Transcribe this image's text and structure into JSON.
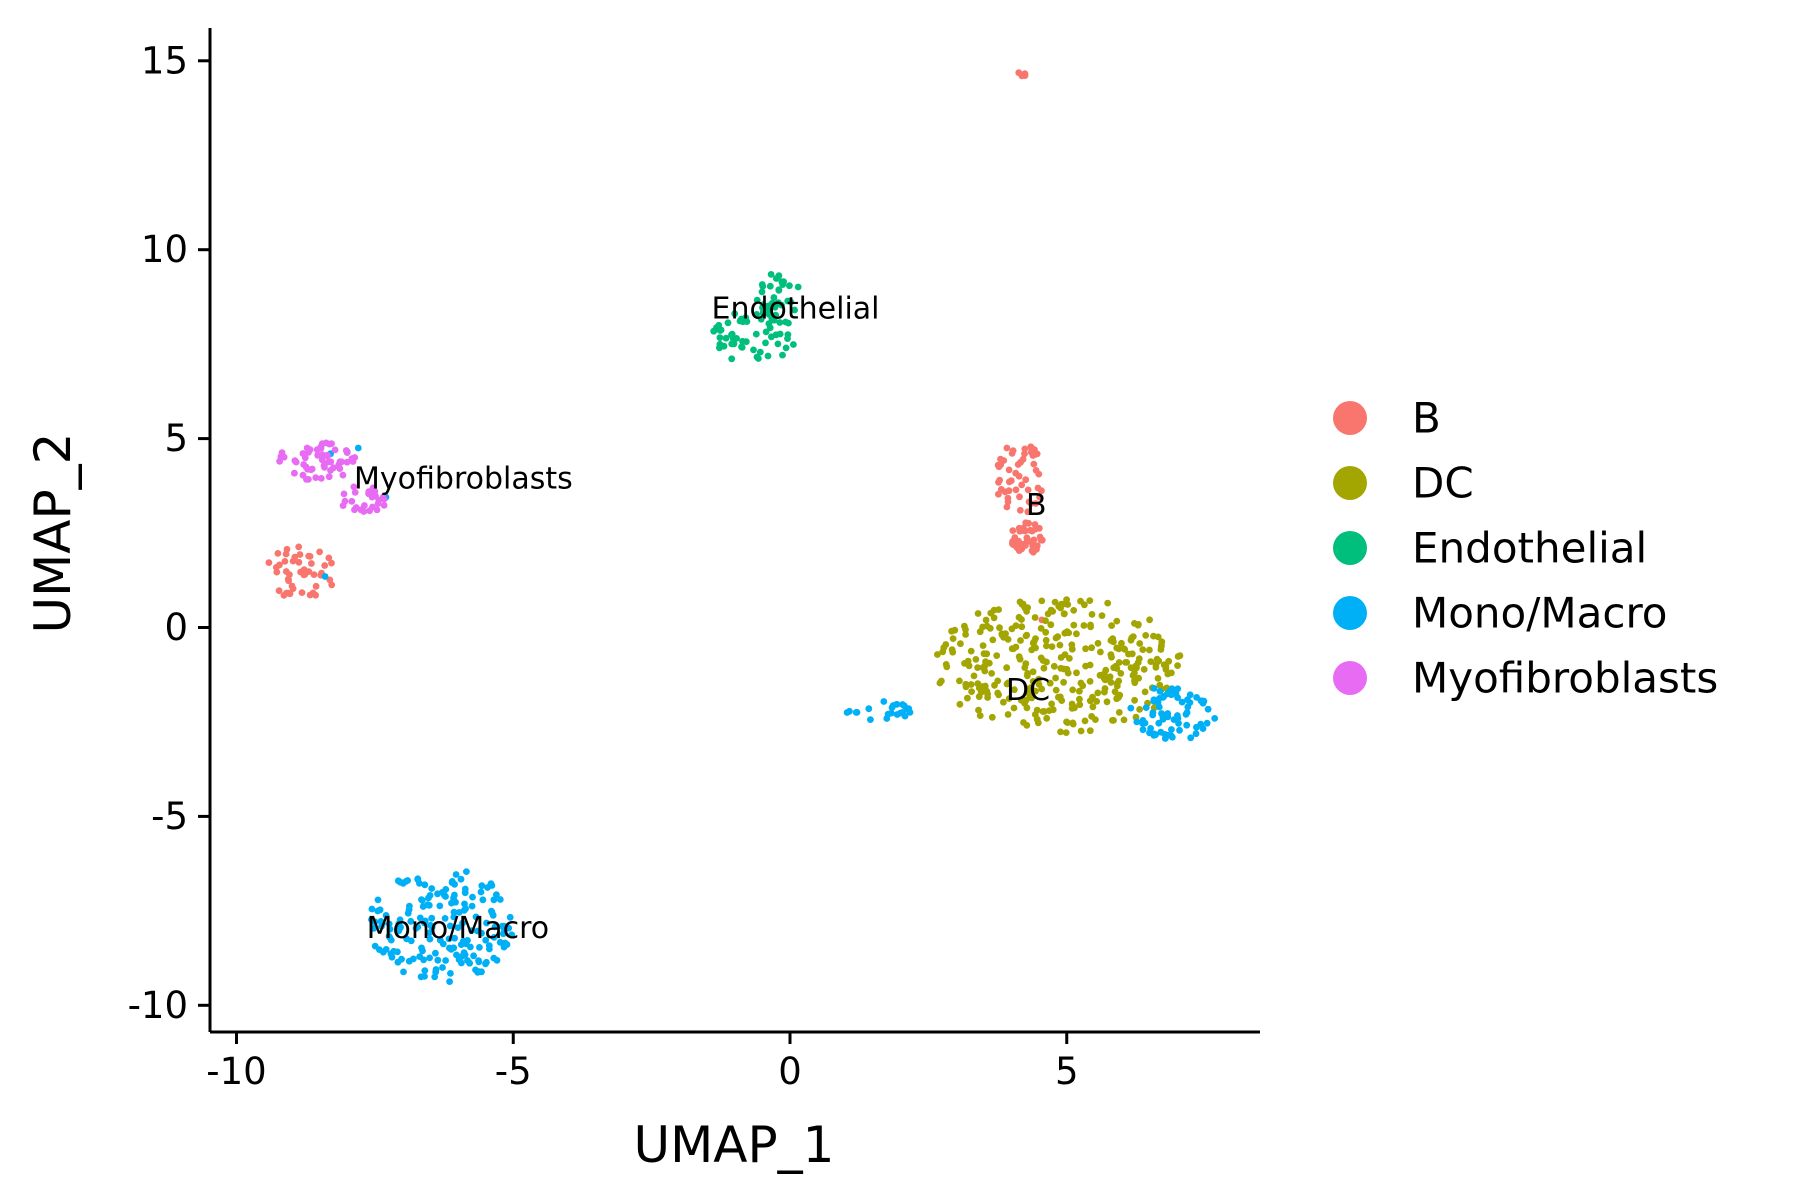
{
  "chart_data": {
    "type": "scatter",
    "title": "",
    "xlabel": "UMAP_1",
    "ylabel": "UMAP_2",
    "xlim": [
      -10.5,
      8.5
    ],
    "ylim": [
      -10.6,
      15.9
    ],
    "x_ticks": [
      -10,
      -5,
      0,
      5
    ],
    "x_tick_labels": [
      "-10",
      "-5",
      "0",
      "5"
    ],
    "y_ticks": [
      -10,
      -5,
      0,
      5,
      10,
      15
    ],
    "y_tick_labels": [
      "-10",
      "-5",
      "0",
      "5",
      "10",
      "15"
    ],
    "grid": false,
    "legend_position": "right",
    "series": [
      {
        "name": "B",
        "color": "#F8766D",
        "clusters": [
          {
            "x": [
              4.0,
              4.6
            ],
            "y": [
              1.8,
              3.0
            ],
            "n": 45
          },
          {
            "x": [
              3.7,
              4.6
            ],
            "y": [
              3.0,
              4.9
            ],
            "n": 50
          },
          {
            "x": [
              -9.5,
              -8.2
            ],
            "y": [
              0.7,
              2.2
            ],
            "n": 45
          },
          {
            "x": [
              4.1,
              4.3
            ],
            "y": [
              14.55,
              14.75
            ],
            "n": 4
          }
        ],
        "points": [
          [
            4.55,
            0.2
          ],
          [
            -8.6,
            1.4
          ]
        ]
      },
      {
        "name": "DC",
        "color": "#A3A500",
        "clusters": [
          {
            "x": [
              2.6,
              7.1
            ],
            "y": [
              -2.8,
              0.8
            ],
            "n": 330
          }
        ]
      },
      {
        "name": "Endothelial",
        "color": "#00BF7D",
        "clusters": [
          {
            "x": [
              -1.4,
              0.1
            ],
            "y": [
              7.0,
              8.4
            ],
            "n": 55
          },
          {
            "x": [
              -0.6,
              0.2
            ],
            "y": [
              8.0,
              9.4
            ],
            "n": 35
          }
        ]
      },
      {
        "name": "Mono/Macro",
        "color": "#00B0F6",
        "clusters": [
          {
            "x": [
              -7.6,
              -5.0
            ],
            "y": [
              -9.4,
              -6.3
            ],
            "n": 180
          },
          {
            "x": [
              6.1,
              7.7
            ],
            "y": [
              -3.1,
              -1.5
            ],
            "n": 70
          },
          {
            "x": [
              1.0,
              2.3
            ],
            "y": [
              -2.45,
              -1.95
            ],
            "n": 22
          }
        ],
        "points": [
          [
            -8.0,
            4.65
          ],
          [
            -7.8,
            4.75
          ],
          [
            -7.5,
            3.5
          ],
          [
            -7.3,
            3.45
          ],
          [
            -8.4,
            1.35
          ],
          [
            -8.3,
            4.6
          ]
        ]
      },
      {
        "name": "Myofibroblasts",
        "color": "#E76BF3",
        "clusters": [
          {
            "x": [
              -9.3,
              -7.8
            ],
            "y": [
              3.9,
              4.9
            ],
            "n": 55
          },
          {
            "x": [
              -8.2,
              -7.2
            ],
            "y": [
              3.0,
              3.8
            ],
            "n": 25
          }
        ]
      }
    ],
    "cluster_labels": [
      {
        "text": "Endothelial",
        "x": 0.1,
        "y": 8.4
      },
      {
        "text": "Myofibroblasts",
        "x": -5.9,
        "y": 3.9
      },
      {
        "text": "B",
        "x": 4.45,
        "y": 3.2
      },
      {
        "text": "DC",
        "x": 4.3,
        "y": -1.7
      },
      {
        "text": "Mono/Macro",
        "x": -6.0,
        "y": -8.0
      }
    ]
  }
}
